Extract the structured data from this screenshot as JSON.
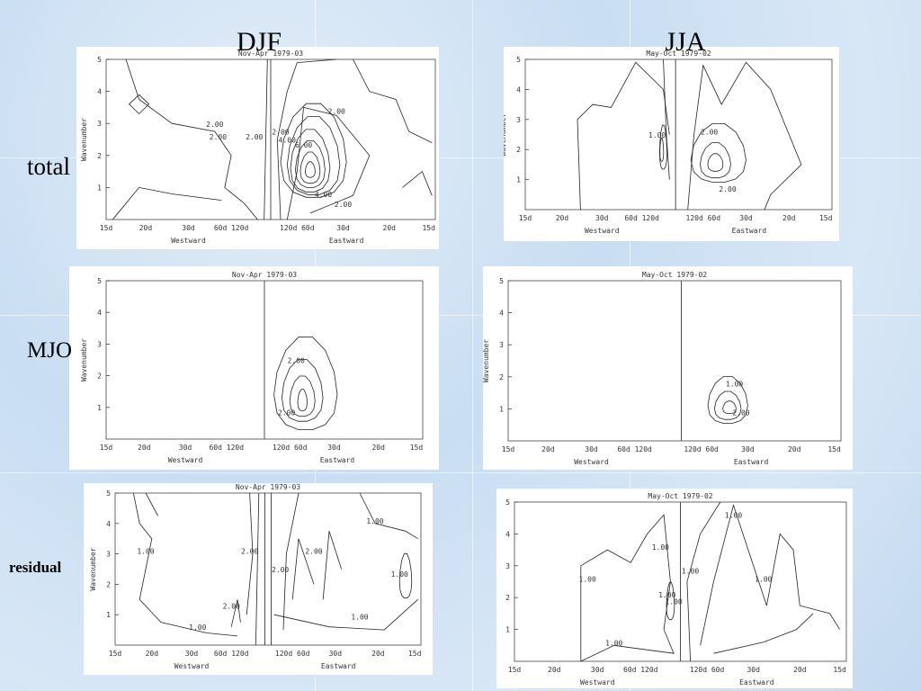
{
  "columns": [
    "DJF",
    "JJA"
  ],
  "rows": [
    "total",
    "MJO",
    "residual"
  ],
  "panels": [
    {
      "title": "Nov-Apr 1979-03",
      "ylabel": "Wavenumber",
      "yticks": [
        "1",
        "2",
        "3",
        "4",
        "5"
      ],
      "xticks": [
        "15d",
        "20d",
        "30d",
        "60d 120d",
        "120d 60d",
        "30d",
        "20d",
        "15d"
      ],
      "xlabels": [
        "Westward",
        "Eastward"
      ],
      "contour_labels": [
        "2.00",
        "2.00",
        "2.00",
        "2.00",
        "4.00",
        "6.00",
        "4.00",
        "2.00",
        "2.00"
      ]
    },
    {
      "title": "May-Oct 1979-02",
      "ylabel": "Wavenumber",
      "yticks": [
        "1",
        "2",
        "3",
        "4",
        "5"
      ],
      "xticks": [
        "15d",
        "20d",
        "30d",
        "60d 120d",
        "120d 60d",
        "30d",
        "20d",
        "15d"
      ],
      "xlabels": [
        "Westward",
        "Eastward"
      ],
      "contour_labels": [
        "1.00",
        "2.00",
        "2.00"
      ]
    },
    {
      "title": "Nov-Apr 1979-03",
      "ylabel": "Wavenumber",
      "yticks": [
        "1",
        "2",
        "3",
        "4",
        "5"
      ],
      "xticks": [
        "15d",
        "20d",
        "30d",
        "60d 120d",
        "120d 60d",
        "30d",
        "20d",
        "15d"
      ],
      "xlabels": [
        "Westward",
        "Eastward"
      ],
      "contour_labels": [
        "2.00",
        "2.00"
      ]
    },
    {
      "title": "May-Oct 1979-02",
      "ylabel": "Wavenumber",
      "yticks": [
        "1",
        "2",
        "3",
        "4",
        "5"
      ],
      "xticks": [
        "15d",
        "20d",
        "30d",
        "60d 120d",
        "120d 60d",
        "30d",
        "20d",
        "15d"
      ],
      "xlabels": [
        "Westward",
        "Eastward"
      ],
      "contour_labels": [
        "1.00",
        "2.00"
      ]
    },
    {
      "title": "Nov-Apr 1979-03",
      "ylabel": "Wavenumber",
      "yticks": [
        "1",
        "2",
        "3",
        "4",
        "5"
      ],
      "xticks": [
        "15d",
        "20d",
        "30d",
        "60d 120d",
        "120d 60d",
        "30d",
        "20d",
        "15d"
      ],
      "xlabels": [
        "Westward",
        "Eastward"
      ],
      "contour_labels": [
        "1.00",
        "2.00",
        "2.00",
        "2.00",
        "2.00",
        "1.00",
        "1.00",
        "1.00",
        "1.00"
      ]
    },
    {
      "title": "May-Oct 1979-02",
      "ylabel": "Wavenumber",
      "yticks": [
        "1",
        "2",
        "3",
        "4",
        "5"
      ],
      "xticks": [
        "15d",
        "20d",
        "30d",
        "60d 120d",
        "120d 60d",
        "30d",
        "20d",
        "15d"
      ],
      "xlabels": [
        "Westward",
        "Eastward"
      ],
      "contour_labels": [
        "1.00",
        "1.00",
        "1.00",
        "1.00",
        "1.00",
        "1.00",
        "1.00",
        "1.00"
      ]
    }
  ]
}
